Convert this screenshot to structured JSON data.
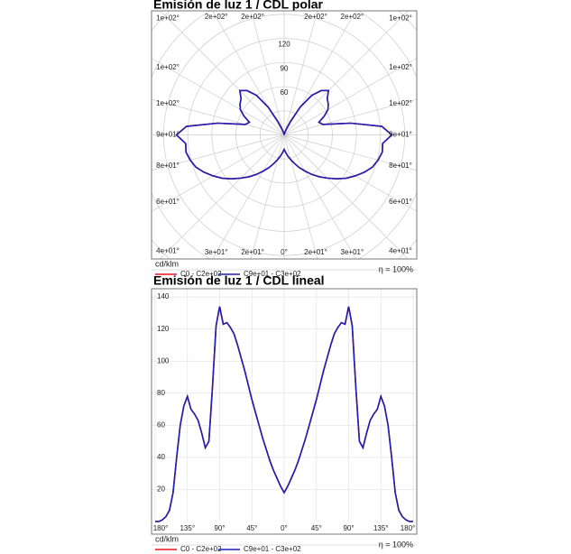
{
  "chart_data": [
    {
      "type": "polar",
      "title": "Emisión de luz 1 / CDL polar",
      "x": [
        -180,
        -175,
        -170,
        -165,
        -160,
        -155,
        -150,
        -145,
        -140,
        -135,
        -130,
        -125,
        -120,
        -115,
        -110,
        -105,
        -100,
        -95,
        -90,
        -85,
        -80,
        -75,
        -70,
        -65,
        -60,
        -55,
        -50,
        -45,
        -40,
        -35,
        -30,
        -25,
        -20,
        -15,
        -10,
        -5,
        0,
        5,
        10,
        15,
        20,
        25,
        30,
        35,
        40,
        45,
        50,
        55,
        60,
        65,
        70,
        75,
        80,
        85,
        90,
        95,
        100,
        105,
        110,
        115,
        120,
        125,
        130,
        135,
        140,
        145,
        150,
        155,
        160,
        165,
        170,
        175,
        180
      ],
      "series": [
        {
          "name": "C0 - C2e+02",
          "color": "#e8141c",
          "values": [
            0,
            0,
            1,
            3,
            7,
            18,
            40,
            60,
            72,
            78,
            70,
            67,
            63,
            55,
            46,
            50,
            84,
            122,
            134,
            123,
            124,
            121,
            117,
            110,
            102,
            94,
            85,
            76,
            68,
            60,
            52,
            45,
            38,
            32,
            27,
            22,
            18,
            22,
            27,
            32,
            38,
            45,
            52,
            60,
            68,
            76,
            85,
            94,
            102,
            110,
            117,
            121,
            124,
            123,
            134,
            122,
            84,
            50,
            46,
            55,
            63,
            67,
            70,
            78,
            72,
            60,
            40,
            18,
            7,
            3,
            1,
            0,
            0
          ]
        },
        {
          "name": "C9e+01 - C3e+02",
          "color": "#1f1fb4",
          "values": [
            0,
            0,
            1,
            3,
            7,
            18,
            40,
            60,
            72,
            78,
            70,
            67,
            63,
            55,
            46,
            50,
            84,
            122,
            134,
            123,
            124,
            121,
            117,
            110,
            102,
            94,
            85,
            76,
            68,
            60,
            52,
            45,
            38,
            32,
            27,
            22,
            18,
            22,
            27,
            32,
            38,
            45,
            52,
            60,
            68,
            76,
            85,
            94,
            102,
            110,
            117,
            121,
            124,
            123,
            134,
            122,
            84,
            50,
            46,
            55,
            63,
            67,
            70,
            78,
            72,
            60,
            40,
            18,
            7,
            3,
            1,
            0,
            0
          ]
        }
      ],
      "rlim": [
        0,
        165
      ],
      "rticks": [
        60,
        90,
        120
      ],
      "angle_ticks": [
        {
          "value": -165,
          "label": "2e+02°"
        },
        {
          "value": -150,
          "label": "2e+02°"
        },
        {
          "value": -135,
          "label": "1e+02°"
        },
        {
          "value": -120,
          "label": "1e+02°"
        },
        {
          "value": -105,
          "label": "1e+02°"
        },
        {
          "value": -90,
          "label": "9e+01°"
        },
        {
          "value": -75,
          "label": "8e+01°"
        },
        {
          "value": -60,
          "label": "6e+01°"
        },
        {
          "value": -45,
          "label": "4e+01°"
        },
        {
          "value": -30,
          "label": "3e+01°"
        },
        {
          "value": -15,
          "label": "2e+01°"
        },
        {
          "value": 0,
          "label": "0°"
        },
        {
          "value": 15,
          "label": "2e+01°"
        },
        {
          "value": 30,
          "label": "3e+01°"
        },
        {
          "value": 45,
          "label": "4e+01°"
        },
        {
          "value": 60,
          "label": "6e+01°"
        },
        {
          "value": 75,
          "label": "8e+01°"
        },
        {
          "value": 90,
          "label": "9e+01°"
        },
        {
          "value": 105,
          "label": "1e+02°"
        },
        {
          "value": 120,
          "label": "1e+02°"
        },
        {
          "value": 135,
          "label": "1e+02°"
        },
        {
          "value": 150,
          "label": "2e+02°"
        },
        {
          "value": 165,
          "label": "2e+02°"
        }
      ],
      "unit": "cd/klm",
      "efficiency": "η = 100%"
    },
    {
      "type": "line",
      "title": "Emisión de luz 1 / CDL lineal",
      "x": [
        -180,
        -175,
        -170,
        -165,
        -160,
        -155,
        -150,
        -145,
        -140,
        -135,
        -130,
        -125,
        -120,
        -115,
        -110,
        -105,
        -100,
        -95,
        -90,
        -85,
        -80,
        -75,
        -70,
        -65,
        -60,
        -55,
        -50,
        -45,
        -40,
        -35,
        -30,
        -25,
        -20,
        -15,
        -10,
        -5,
        0,
        5,
        10,
        15,
        20,
        25,
        30,
        35,
        40,
        45,
        50,
        55,
        60,
        65,
        70,
        75,
        80,
        85,
        90,
        95,
        100,
        105,
        110,
        115,
        120,
        125,
        130,
        135,
        140,
        145,
        150,
        155,
        160,
        165,
        170,
        175,
        180
      ],
      "series": [
        {
          "name": "C0 - C2e+02",
          "color": "#e8141c",
          "values": [
            0,
            0,
            1,
            3,
            7,
            18,
            40,
            60,
            72,
            78,
            70,
            67,
            63,
            55,
            46,
            50,
            84,
            122,
            134,
            123,
            124,
            121,
            117,
            110,
            102,
            94,
            85,
            76,
            68,
            60,
            52,
            45,
            38,
            32,
            27,
            22,
            18,
            22,
            27,
            32,
            38,
            45,
            52,
            60,
            68,
            76,
            85,
            94,
            102,
            110,
            117,
            121,
            124,
            123,
            134,
            122,
            84,
            50,
            46,
            55,
            63,
            67,
            70,
            78,
            72,
            60,
            40,
            18,
            7,
            3,
            1,
            0,
            0
          ]
        },
        {
          "name": "C9e+01 - C3e+02",
          "color": "#1f1fb4",
          "values": [
            0,
            0,
            1,
            3,
            7,
            18,
            40,
            60,
            72,
            78,
            70,
            67,
            63,
            55,
            46,
            50,
            84,
            122,
            134,
            123,
            124,
            121,
            117,
            110,
            102,
            94,
            85,
            76,
            68,
            60,
            52,
            45,
            38,
            32,
            27,
            22,
            18,
            22,
            27,
            32,
            38,
            45,
            52,
            60,
            68,
            76,
            85,
            94,
            102,
            110,
            117,
            121,
            124,
            123,
            134,
            122,
            84,
            50,
            46,
            55,
            63,
            67,
            70,
            78,
            72,
            60,
            40,
            18,
            7,
            3,
            1,
            0,
            0
          ]
        }
      ],
      "xlim": [
        -180,
        180
      ],
      "xticks": [
        {
          "value": -180,
          "label": "180°"
        },
        {
          "value": -135,
          "label": "135°"
        },
        {
          "value": -90,
          "label": "90°"
        },
        {
          "value": -45,
          "label": "45°"
        },
        {
          "value": 0,
          "label": "0°"
        },
        {
          "value": 45,
          "label": "45°"
        },
        {
          "value": 90,
          "label": "90°"
        },
        {
          "value": 135,
          "label": "135°"
        },
        {
          "value": 180,
          "label": "180°"
        }
      ],
      "ylim": [
        0,
        144
      ],
      "yticks": [
        20,
        40,
        60,
        80,
        100,
        120,
        140
      ],
      "grid": true,
      "unit": "cd/klm",
      "efficiency": "η = 100%"
    }
  ]
}
